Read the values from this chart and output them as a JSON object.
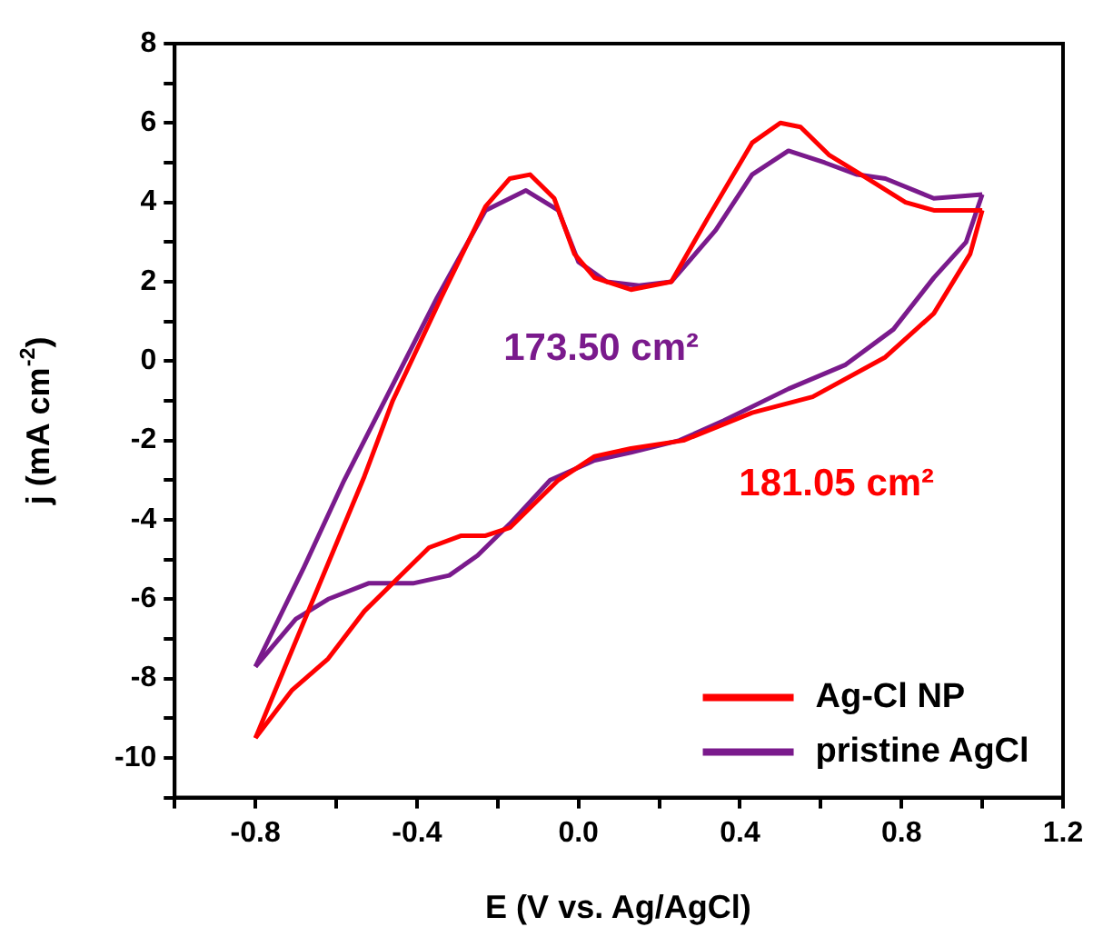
{
  "chart_data": {
    "type": "line",
    "xlabel": "E (V vs. Ag/AgCl)",
    "ylabel": "j (mA cm$^{-2}$)",
    "xlim": [
      -1.0,
      1.2
    ],
    "ylim": [
      -11,
      8
    ],
    "xticks": [
      {
        "value": -1.0,
        "label": null
      },
      -0.8,
      {
        "value": -0.6,
        "label": null
      },
      -0.4,
      {
        "value": -0.2,
        "label": null
      },
      {
        "value": 0,
        "label": "0.0"
      },
      {
        "value": 0.2,
        "label": null
      },
      0.4,
      {
        "value": 0.6,
        "label": null
      },
      0.8,
      {
        "value": 1.0,
        "label": null
      },
      1.2
    ],
    "yticks": [
      {
        "value": -11,
        "label": null
      },
      -10,
      {
        "value": -9,
        "label": null
      },
      -8,
      {
        "value": -7,
        "label": null
      },
      -6,
      {
        "value": -5,
        "label": null
      },
      -4,
      {
        "value": -3,
        "label": null
      },
      -2,
      {
        "value": -1,
        "label": null
      },
      0,
      {
        "value": 1,
        "label": null
      },
      2,
      {
        "value": 3,
        "label": null
      },
      4,
      {
        "value": 5,
        "label": null
      },
      6,
      {
        "value": 7,
        "label": null
      },
      8
    ],
    "grid": false,
    "legend": "bottom right",
    "marker": "none",
    "line_style": "solid",
    "series": [
      {
        "name": "Ag-Cl NP",
        "color": "#ff0000",
        "x": [
          -0.8,
          -0.53,
          -0.46,
          -0.34,
          -0.23,
          -0.17,
          -0.12,
          -0.06,
          -0.01,
          0.04,
          0.13,
          0.23,
          0.32,
          0.43,
          0.5,
          0.55,
          0.62,
          0.7,
          0.81,
          0.88,
          1.0
        ],
        "values": [
          -9.5,
          -2.9,
          -1.0,
          1.6,
          3.9,
          4.6,
          4.7,
          4.1,
          2.7,
          2.1,
          1.8,
          2.0,
          3.6,
          5.5,
          6.0,
          5.9,
          5.2,
          4.7,
          4.0,
          3.8,
          3.8
        ]
      },
      {
        "color": "#ff0000",
        "x": [
          -0.8,
          -0.71,
          -0.62,
          -0.53,
          -0.44,
          -0.37,
          -0.29,
          -0.23,
          -0.17,
          -0.05,
          0.04,
          0.13,
          0.26,
          0.43,
          0.58,
          0.76,
          0.88,
          0.97,
          1.0
        ],
        "values": [
          -9.5,
          -8.3,
          -7.5,
          -6.3,
          -5.4,
          -4.7,
          -4.4,
          -4.4,
          -4.2,
          -3.0,
          -2.4,
          -2.2,
          -2.0,
          -1.3,
          -0.9,
          0.1,
          1.2,
          2.7,
          3.8
        ]
      },
      {
        "name": "pristine AgCl",
        "color": "#7a1a8c",
        "x": [
          -0.8,
          -0.68,
          -0.58,
          -0.35,
          -0.23,
          -0.13,
          -0.05,
          0.0,
          0.07,
          0.15,
          0.23,
          0.34,
          0.43,
          0.52,
          0.61,
          0.69,
          0.76,
          0.88,
          1.0
        ],
        "values": [
          -7.7,
          -5.2,
          -3.0,
          1.6,
          3.8,
          4.3,
          3.8,
          2.5,
          2.0,
          1.9,
          2.0,
          3.3,
          4.7,
          5.3,
          5.0,
          4.7,
          4.6,
          4.1,
          4.2
        ]
      },
      {
        "color": "#7a1a8c",
        "x": [
          -0.8,
          -0.7,
          -0.62,
          -0.52,
          -0.41,
          -0.32,
          -0.25,
          -0.17,
          -0.07,
          0.04,
          0.13,
          0.25,
          0.36,
          0.52,
          0.66,
          0.78,
          0.88,
          0.96,
          1.0
        ],
        "values": [
          -7.7,
          -6.5,
          -6.0,
          -5.6,
          -5.6,
          -5.4,
          -4.9,
          -4.1,
          -3.0,
          -2.5,
          -2.3,
          -2.0,
          -1.5,
          -0.7,
          -0.1,
          0.8,
          2.1,
          3.0,
          4.2
        ]
      }
    ],
    "annotations": [
      "181.05 cm²",
      "173.50 cm²"
    ]
  }
}
